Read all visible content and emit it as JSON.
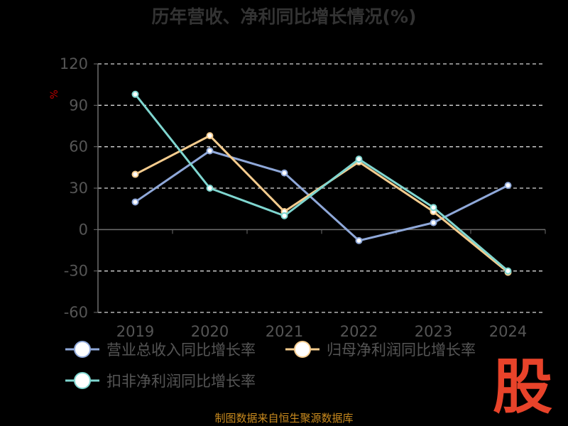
{
  "chart_data": {
    "type": "line",
    "title": "历年营收、净利同比增长情况(%)",
    "ylabel": "%",
    "xlabel": "",
    "categories": [
      "2019",
      "2020",
      "2021",
      "2022",
      "2023",
      "2024"
    ],
    "yticks": [
      "120",
      "90",
      "60",
      "30",
      "0",
      "-30",
      "-60"
    ],
    "ylim": [
      -60,
      120
    ],
    "grid": true,
    "legend_position": "bottom-left",
    "series": [
      {
        "name": "营业总收入同比增长率",
        "color": "#8fa8d9",
        "values": [
          20,
          57,
          41,
          -8,
          5,
          32
        ]
      },
      {
        "name": "归母净利润同比增长率",
        "color": "#f5cc8e",
        "values": [
          40,
          68,
          13,
          49,
          13,
          -31
        ]
      },
      {
        "name": "扣非净利润同比增长率",
        "color": "#7fd6d0",
        "values": [
          98,
          30,
          10,
          51,
          16,
          -30
        ]
      }
    ]
  },
  "footer": "制图数据来自恒生聚源数据库",
  "logo_text": "股"
}
